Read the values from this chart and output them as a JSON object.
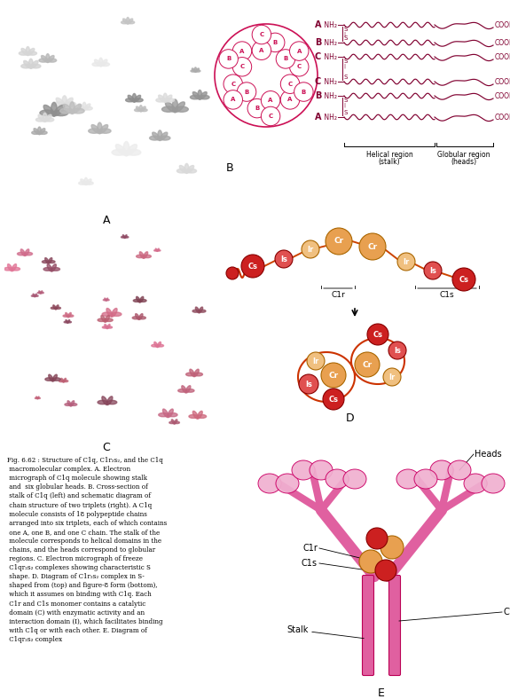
{
  "background": "#ffffff",
  "chain_color": "#800030",
  "circle_color": "#CC1055",
  "cr_color": "#E8A050",
  "ir_color": "#F0C080",
  "cs_color": "#CC2020",
  "is_color": "#E05050",
  "stalk_color": "#E060A0",
  "head_color": "#F0B0D0",
  "head_edge": "#CC0066",
  "chain_labels": [
    "A",
    "B",
    "C",
    "C",
    "B",
    "A"
  ],
  "fig_caption": "Fig. 6.62 : Structure of C1q, C1r₂s₂, and the C1q\n macromolecular complex. A. Electron\n micrograph of C1q molecule showing stalk\n and  six globular heads. B. Cross-section of\n stalk of C1q (left) and schematic diagram of\n chain structure of two triplets (right). A C1q\n molecule consists of 18 polypeptide chains\n arranged into six triplets, each of which contains\n one A, one B, and one C chain. The stalk of the\n molecule corresponds to helical domains in the\n chains, and the heads correspond to globular\n regions. C. Electron micrograph of freeze\n C1qr₂s₂ complexes showing characteristic S\n shape. D. Diagram of C1r₂s₂ complex in S-\n shaped from (top) and figure-8 form (bottom),\n which it assumes on binding with C1q. Each\n C1r and C1s monomer contains a catalytic\n domain (C) with enzymatic activity and an\n interaction domain (I), which facilitates binding\n with C1q or with each other. E. Diagram of\n C1qr₂s₂ complex"
}
